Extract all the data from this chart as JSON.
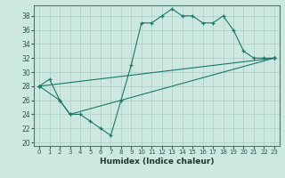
{
  "xlabel": "Humidex (Indice chaleur)",
  "bg_color": "#cce8e0",
  "grid_color": "#aaccc4",
  "line_color": "#1a7868",
  "xlim": [
    -0.5,
    23.5
  ],
  "ylim": [
    19.5,
    39.5
  ],
  "xticks": [
    0,
    1,
    2,
    3,
    4,
    5,
    6,
    7,
    8,
    9,
    10,
    11,
    12,
    13,
    14,
    15,
    16,
    17,
    18,
    19,
    20,
    21,
    22,
    23
  ],
  "yticks": [
    20,
    22,
    24,
    26,
    28,
    30,
    32,
    34,
    36,
    38
  ],
  "lines": [
    {
      "x": [
        0,
        1,
        2,
        3,
        4,
        5,
        6,
        7,
        8,
        9,
        10,
        11,
        12,
        13,
        14,
        15,
        16,
        17,
        18,
        19,
        20,
        21,
        22,
        23
      ],
      "y": [
        28,
        29,
        26,
        24,
        24,
        23,
        22,
        21,
        26,
        31,
        37,
        37,
        38,
        39,
        38,
        38,
        37,
        37,
        38,
        36,
        33,
        32,
        32,
        32
      ]
    },
    {
      "x": [
        0,
        23
      ],
      "y": [
        28,
        32
      ]
    },
    {
      "x": [
        0,
        2,
        3,
        23
      ],
      "y": [
        28,
        26,
        24,
        32
      ]
    }
  ]
}
